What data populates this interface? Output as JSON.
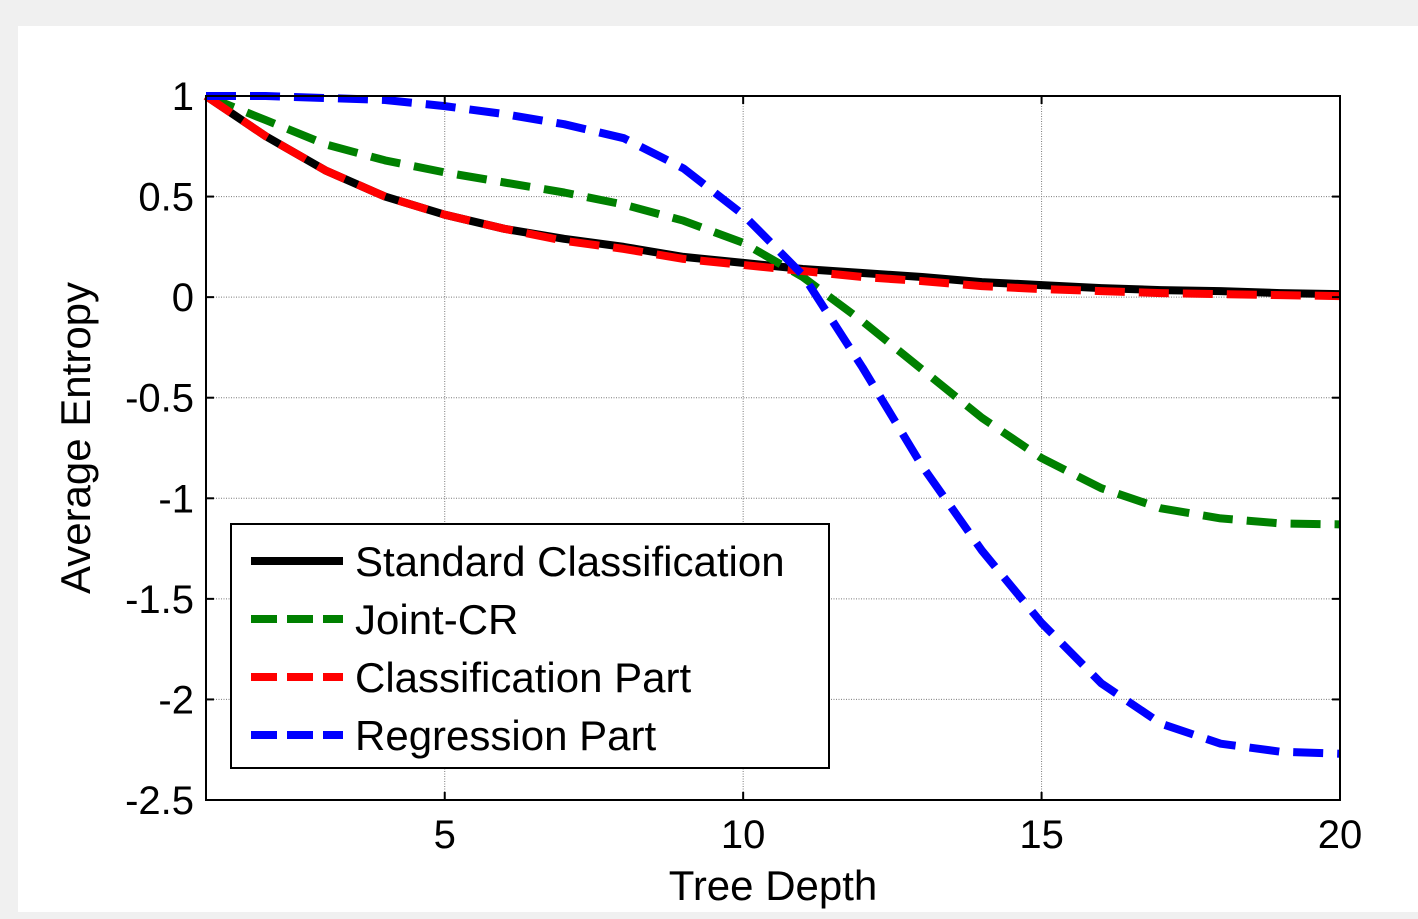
{
  "chart_data": {
    "type": "line",
    "title": "",
    "xlabel": "Tree Depth",
    "ylabel": "Average Entropy",
    "xlim": [
      1,
      20
    ],
    "ylim": [
      -2.5,
      1
    ],
    "xticks": [
      5,
      10,
      15,
      20
    ],
    "xtick_labels": [
      "5",
      "10",
      "15",
      "20"
    ],
    "yticks": [
      1,
      0.5,
      0,
      -0.5,
      -1,
      -1.5,
      -2,
      -2.5
    ],
    "ytick_labels": [
      "1",
      "0.5",
      "0",
      "-0.5",
      "-1",
      "-1.5",
      "-2",
      "-2.5"
    ],
    "grid": true,
    "legend_position": "lower-left",
    "x": [
      1,
      2,
      3,
      4,
      5,
      6,
      7,
      8,
      9,
      10,
      11,
      12,
      13,
      14,
      15,
      16,
      17,
      18,
      19,
      20
    ],
    "series": [
      {
        "name": "Standard Classification",
        "color": "#000000",
        "style": "solid",
        "values": [
          1.0,
          0.8,
          0.63,
          0.5,
          0.41,
          0.34,
          0.29,
          0.25,
          0.2,
          0.17,
          0.14,
          0.12,
          0.1,
          0.075,
          0.06,
          0.045,
          0.035,
          0.03,
          0.02,
          0.015
        ]
      },
      {
        "name": "Joint-CR",
        "color": "#008000",
        "style": "dashed",
        "values": [
          1.0,
          0.88,
          0.76,
          0.68,
          0.62,
          0.57,
          0.52,
          0.46,
          0.38,
          0.27,
          0.1,
          -0.12,
          -0.36,
          -0.6,
          -0.8,
          -0.95,
          -1.05,
          -1.1,
          -1.125,
          -1.13
        ]
      },
      {
        "name": "Classification Part",
        "color": "#ff0000",
        "style": "dashed",
        "values": [
          1.0,
          0.8,
          0.63,
          0.5,
          0.41,
          0.34,
          0.28,
          0.24,
          0.19,
          0.16,
          0.13,
          0.1,
          0.08,
          0.055,
          0.04,
          0.03,
          0.02,
          0.015,
          0.01,
          0.005
        ]
      },
      {
        "name": "Regression Part",
        "color": "#0000ff",
        "style": "dashed",
        "values": [
          1.0,
          1.0,
          0.99,
          0.98,
          0.95,
          0.91,
          0.86,
          0.79,
          0.64,
          0.41,
          0.11,
          -0.35,
          -0.84,
          -1.26,
          -1.62,
          -1.92,
          -2.12,
          -2.22,
          -2.26,
          -2.27
        ]
      }
    ]
  }
}
